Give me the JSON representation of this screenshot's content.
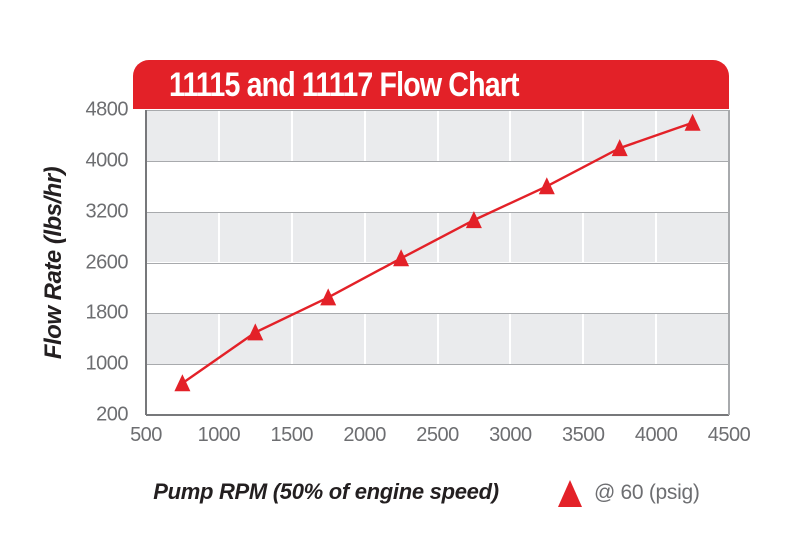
{
  "header": {
    "title": "11115 and 11117 Flow Chart"
  },
  "axes": {
    "x_title": "Pump RPM (50% of engine speed)",
    "y_title": "Flow Rate (lbs/hr)"
  },
  "legend": {
    "label": "@ 60 (psig)",
    "marker": "triangle-up"
  },
  "colors": {
    "red": "#e32128",
    "band_gray": "#eaebed",
    "band_white": "#ffffff",
    "grid_line": "#a8aaad",
    "axis_line": "#77787b",
    "vertical_grid": "#ffffff",
    "tick_text": "#6d6e71",
    "axis_title_text": "#231f20",
    "banner_text": "#ffffff"
  },
  "chart_data": {
    "type": "line",
    "title": "11115 and 11117 Flow Chart",
    "xlabel": "Pump RPM (50% of engine speed)",
    "ylabel": "Flow Rate (lbs/hr)",
    "x_ticks": [
      500,
      1000,
      1500,
      2000,
      2500,
      3000,
      3500,
      4000,
      4500
    ],
    "y_ticks_top_to_bottom": [
      4800,
      4000,
      3200,
      2600,
      1800,
      1000,
      200
    ],
    "xlim": [
      500,
      4500
    ],
    "y_axis_note": "y tick labels are evenly spaced as printed (non-uniform numeric intervals)",
    "background_bands": "six horizontal bands alternating gray/white, gray topmost",
    "grid": "white vertical gridlines at each x tick; gray horizontal lines at each y tick",
    "legend_entry": {
      "label": "@ 60 (psig)",
      "marker": "triangle-up",
      "position": "bottom-right"
    },
    "series": [
      {
        "name": "@ 60 (psig)",
        "marker": "triangle-up",
        "color": "#e32128",
        "points": [
          {
            "rpm": 750,
            "flow": 700
          },
          {
            "rpm": 1250,
            "flow": 1500
          },
          {
            "rpm": 1750,
            "flow": 2050
          },
          {
            "rpm": 2250,
            "flow": 2650
          },
          {
            "rpm": 2750,
            "flow": 3100
          },
          {
            "rpm": 3250,
            "flow": 3600
          },
          {
            "rpm": 3750,
            "flow": 4200
          },
          {
            "rpm": 4250,
            "flow": 4600
          }
        ]
      }
    ]
  }
}
